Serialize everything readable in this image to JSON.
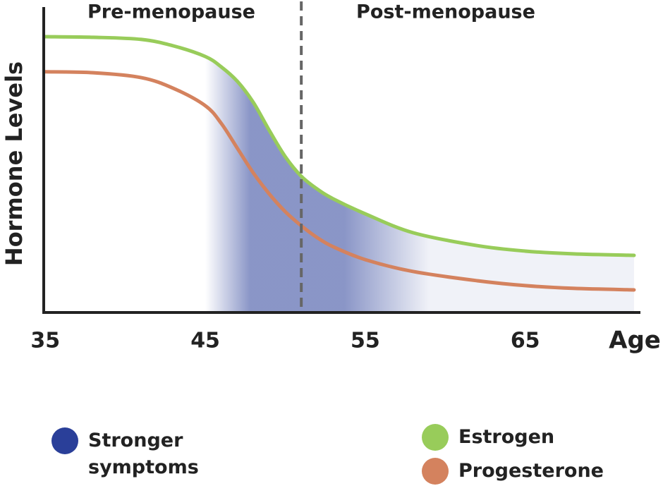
{
  "chart_data": {
    "type": "line",
    "region_labels": [
      "Pre-menopause",
      "Post-menopause"
    ],
    "x_label": "Age",
    "y_label": "Hormone Levels",
    "x": [
      35,
      38,
      41,
      43,
      45,
      46,
      47,
      48,
      49,
      50,
      51,
      52,
      53,
      55,
      58,
      62,
      65,
      68,
      71.8
    ],
    "series": [
      {
        "name": "Estrogen",
        "color": "#98cc5a",
        "values": [
          90.3,
          90.1,
          89.4,
          87.3,
          83.8,
          80.4,
          75.7,
          68.8,
          59.6,
          51.0,
          44.6,
          40.4,
          37.2,
          32.3,
          26.1,
          21.9,
          20.1,
          19.2,
          18.7
        ]
      },
      {
        "name": "Progesterone",
        "color": "#d4825e",
        "values": [
          78.8,
          78.5,
          76.9,
          73.4,
          67.7,
          61.9,
          53.8,
          45.7,
          38.8,
          33.0,
          28.4,
          24.5,
          21.5,
          17.3,
          13.4,
          10.4,
          8.8,
          7.9,
          7.4
        ]
      }
    ],
    "shaded_region": {
      "name": "Stronger symptoms",
      "color": "#2a3f99",
      "x_range": [
        45,
        59
      ]
    },
    "divider_x": 51,
    "xlim": [
      34.9,
      72.2
    ],
    "xticks": [
      35,
      45,
      55,
      65
    ],
    "ylim": [
      0,
      100
    ]
  }
}
